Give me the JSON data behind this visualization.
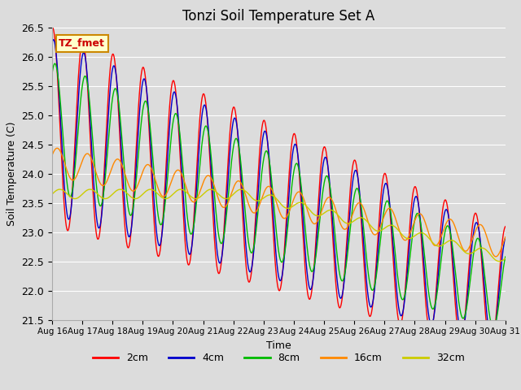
{
  "title": "Tonzi Soil Temperature Set A",
  "xlabel": "Time",
  "ylabel": "Soil Temperature (C)",
  "ylim": [
    21.5,
    26.5
  ],
  "xtick_labels": [
    "Aug 16",
    "Aug 17",
    "Aug 18",
    "Aug 19",
    "Aug 20",
    "Aug 21",
    "Aug 22",
    "Aug 23",
    "Aug 24",
    "Aug 25",
    "Aug 26",
    "Aug 27",
    "Aug 28",
    "Aug 29",
    "Aug 30",
    "Aug 31"
  ],
  "ytick_values": [
    21.5,
    22.0,
    22.5,
    23.0,
    23.5,
    24.0,
    24.5,
    25.0,
    25.5,
    26.0,
    26.5
  ],
  "ytick_labels": [
    "21.5",
    "22.0",
    "22.5",
    "23.0",
    "23.5",
    "24.0",
    "24.5",
    "25.0",
    "25.5",
    "26.0",
    "26.5"
  ],
  "colors": {
    "2cm": "#ff0000",
    "4cm": "#0000cc",
    "8cm": "#00bb00",
    "16cm": "#ff8800",
    "32cm": "#cccc00"
  },
  "annotation_text": "TZ_fmet",
  "annotation_bg": "#ffffcc",
  "annotation_border": "#cc8800",
  "bg_color": "#dcdcdc",
  "grid_color": "#ffffff",
  "title_fontsize": 12,
  "axis_fontsize": 9,
  "label_fontsize": 9
}
